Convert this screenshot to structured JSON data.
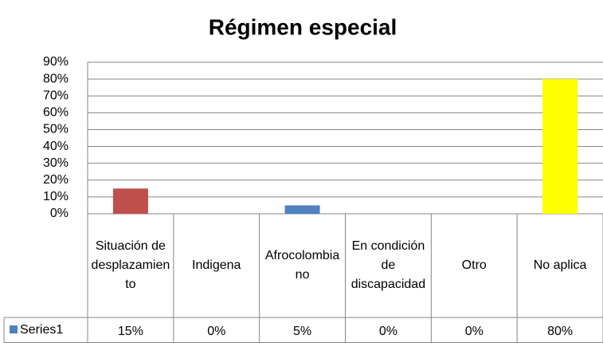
{
  "chart_data": {
    "type": "bar",
    "title": "Régimen especial",
    "categories": [
      "Situación de desplazamiento",
      "Indigena",
      "Afrocolombiano",
      "En condición de discapacidad",
      "Otro",
      "No aplica"
    ],
    "series": [
      {
        "name": "Series1",
        "color": "#4f81bd",
        "colors": [
          "#c0504d",
          "#4f81bd",
          "#4f81bd",
          "#4f81bd",
          "#4f81bd",
          "#ffff00"
        ],
        "values": [
          15,
          0,
          5,
          0,
          0,
          80
        ],
        "value_labels": [
          "15%",
          "0%",
          "5%",
          "0%",
          "0%",
          "80%"
        ]
      }
    ],
    "ylim": [
      0,
      90
    ],
    "yticks": [
      {
        "value": 0,
        "label": "0%"
      },
      {
        "value": 10,
        "label": "10%"
      },
      {
        "value": 20,
        "label": "20%"
      },
      {
        "value": 30,
        "label": "30%"
      },
      {
        "value": 40,
        "label": "40%"
      },
      {
        "value": 50,
        "label": "50%"
      },
      {
        "value": 60,
        "label": "60%"
      },
      {
        "value": 70,
        "label": "70%"
      },
      {
        "value": 80,
        "label": "80%"
      },
      {
        "value": 90,
        "label": "90%"
      }
    ],
    "grid": true
  }
}
